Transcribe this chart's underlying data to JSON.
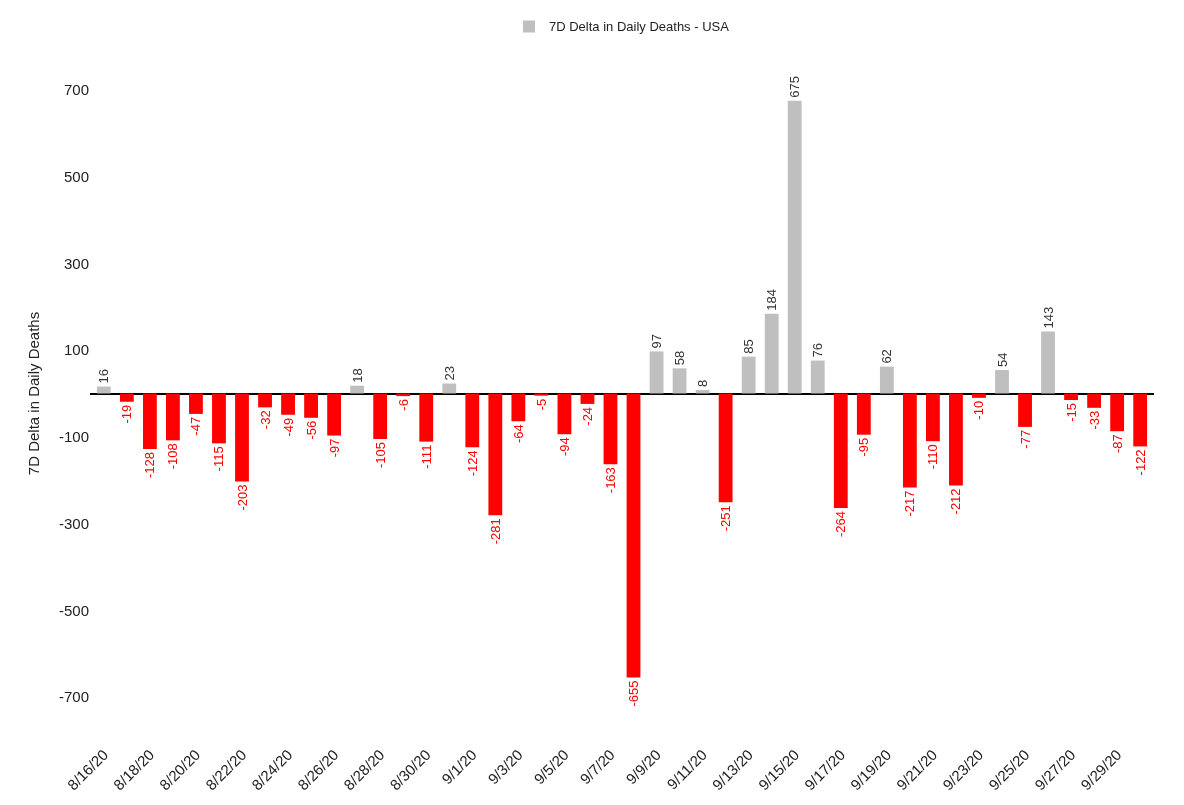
{
  "chart_data": {
    "type": "bar",
    "categories": [
      "8/16/20",
      null,
      "8/18/20",
      null,
      "8/20/20",
      null,
      "8/22/20",
      null,
      "8/24/20",
      null,
      "8/26/20",
      null,
      "8/28/20",
      null,
      "8/30/20",
      null,
      "9/1/20",
      null,
      "9/3/20",
      null,
      "9/5/20",
      null,
      "9/7/20",
      null,
      "9/9/20",
      null,
      "9/11/20",
      null,
      "9/13/20",
      null,
      "9/15/20",
      null,
      "9/17/20",
      null,
      "9/19/20",
      null,
      "9/21/20",
      null,
      "9/23/20",
      null,
      "9/25/20",
      null,
      "9/27/20",
      null,
      "9/29/20",
      null
    ],
    "series": [
      {
        "name": "7D Delta in Daily Deaths - USA",
        "color": "#bfbfbf",
        "values": [
          16,
          -19,
          -128,
          -108,
          -47,
          -115,
          -203,
          -32,
          -49,
          -56,
          -97,
          18,
          -105,
          -6,
          -111,
          23,
          -124,
          -281,
          -64,
          -5,
          -94,
          -24,
          -163,
          -655,
          97,
          58,
          8,
          -251,
          85,
          184,
          675,
          76,
          -264,
          -95,
          62,
          -217,
          -110,
          -212,
          -10,
          54,
          -77,
          143,
          -15,
          -33,
          -87,
          -122
        ],
        "colors": [
          null,
          "#ff0000",
          "#ff0000",
          "#ff0000",
          "#ff0000",
          "#ff0000",
          "#ff0000",
          "#ff0000",
          "#ff0000",
          "#ff0000",
          "#ff0000",
          null,
          "#ff0000",
          "#ff0000",
          "#ff0000",
          null,
          "#ff0000",
          "#ff0000",
          "#ff0000",
          "#ff0000",
          "#ff0000",
          "#ff0000",
          "#ff0000",
          "#ff0000",
          null,
          null,
          null,
          "#ff0000",
          null,
          null,
          null,
          null,
          "#ff0000",
          "#ff0000",
          null,
          "#ff0000",
          "#ff0000",
          "#ff0000",
          "#ff0000",
          null,
          "#ff0000",
          null,
          "#ff0000",
          "#ff0000",
          "#ff0000",
          "#ff0000"
        ]
      }
    ],
    "ylabel": "7D Delta in Daily Deaths",
    "ylim": [
      -700,
      700
    ],
    "yticks": [
      -700,
      -500,
      -300,
      -100,
      100,
      300,
      500,
      700
    ],
    "data_labels": true,
    "legend": "top"
  }
}
